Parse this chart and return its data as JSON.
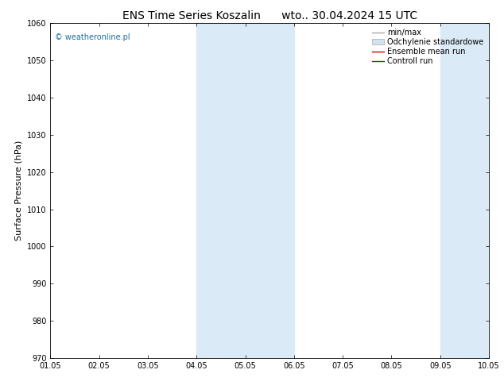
{
  "title": "ENS Time Series Koszalin      wto.. 30.04.2024 15 UTC",
  "ylabel": "Surface Pressure (hPa)",
  "ylim": [
    970,
    1060
  ],
  "yticks": [
    970,
    980,
    990,
    1000,
    1010,
    1020,
    1030,
    1040,
    1050,
    1060
  ],
  "xlim": [
    0,
    9
  ],
  "xtick_positions": [
    0,
    1,
    2,
    3,
    4,
    5,
    6,
    7,
    8,
    9
  ],
  "xtick_labels": [
    "01.05",
    "02.05",
    "03.05",
    "04.05",
    "05.05",
    "06.05",
    "07.05",
    "08.05",
    "09.05",
    "10.05"
  ],
  "shade_bands": [
    {
      "xmin": 3.0,
      "xmax": 3.5,
      "color": "#daeaf7"
    },
    {
      "xmin": 3.5,
      "xmax": 5.0,
      "color": "#daeaf7"
    },
    {
      "xmin": 8.0,
      "xmax": 8.5,
      "color": "#daeaf7"
    },
    {
      "xmin": 8.5,
      "xmax": 9.0,
      "color": "#daeaf7"
    }
  ],
  "watermark": "© weatheronline.pl",
  "watermark_color": "#1a6ea0",
  "legend_entries": [
    {
      "label": "min/max",
      "type": "hline",
      "color": "#aaaaaa"
    },
    {
      "label": "Odchylenie standardowe",
      "type": "box",
      "color": "#d0e4f0"
    },
    {
      "label": "Ensemble mean run",
      "type": "line",
      "color": "#cc0000"
    },
    {
      "label": "Controll run",
      "type": "line",
      "color": "#006600"
    }
  ],
  "background_color": "#ffffff",
  "plot_bg_color": "#ffffff",
  "title_fontsize": 10,
  "ylabel_fontsize": 8,
  "tick_fontsize": 7,
  "legend_fontsize": 7
}
